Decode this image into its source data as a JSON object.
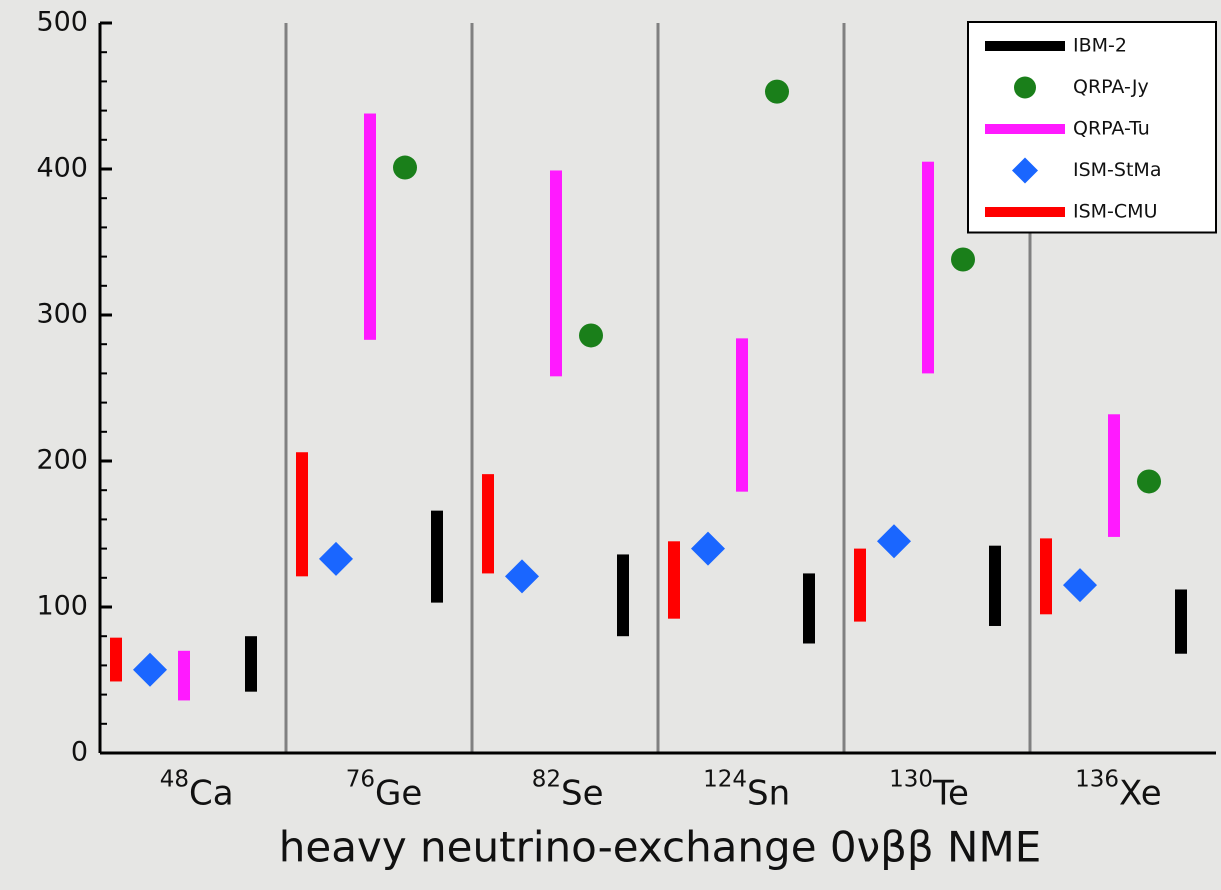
{
  "chart_data": {
    "type": "range",
    "xlabel": "heavy neutrino-exchange 0νββ NME",
    "categories": [
      "Ca",
      "Ge",
      "Se",
      "Sn",
      "Te",
      "Xe"
    ],
    "mass_numbers": [
      "48",
      "76",
      "82",
      "124",
      "130",
      "136"
    ],
    "ylim": [
      0,
      500
    ],
    "yticks": [
      0,
      100,
      200,
      300,
      400,
      500
    ],
    "yminorticks": [
      20,
      40,
      60,
      80,
      120,
      140,
      160,
      180,
      220,
      240,
      260,
      280,
      320,
      340,
      360,
      380,
      420,
      440,
      460,
      480
    ],
    "legend": "upper right",
    "series": [
      {
        "name": "IBM-2",
        "color": "#000000",
        "marker": "bar",
        "values": [
          [
            42,
            80
          ],
          [
            103,
            166
          ],
          [
            80,
            136
          ],
          [
            75,
            123
          ],
          [
            87,
            142
          ],
          [
            68,
            112
          ]
        ]
      },
      {
        "name": "QRPA-Jy",
        "color": "#1a7f1a",
        "marker": "dot",
        "values": [
          null,
          401,
          286,
          453,
          338,
          186
        ]
      },
      {
        "name": "QRPA-Tu",
        "color": "#ff1aff",
        "marker": "bar",
        "values": [
          [
            36,
            70
          ],
          [
            283,
            438
          ],
          [
            258,
            399
          ],
          [
            179,
            284
          ],
          [
            260,
            405
          ],
          [
            148,
            232
          ]
        ]
      },
      {
        "name": "ISM-StMa",
        "color": "#1a66ff",
        "marker": "diamond",
        "values": [
          57,
          133,
          121,
          140,
          145,
          115
        ]
      },
      {
        "name": "ISM-CMU",
        "color": "#ff0000",
        "marker": "bar",
        "values": [
          [
            49,
            79
          ],
          [
            121,
            206
          ],
          [
            123,
            191
          ],
          [
            92,
            145
          ],
          [
            90,
            140
          ],
          [
            95,
            147
          ]
        ]
      }
    ]
  }
}
